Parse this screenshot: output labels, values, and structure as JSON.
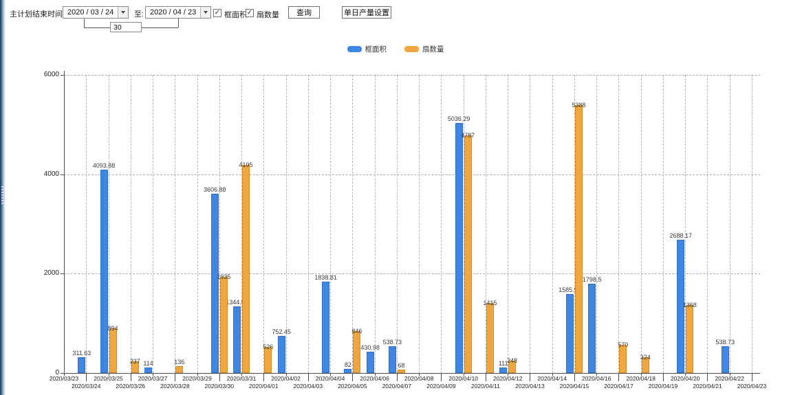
{
  "toolbar": {
    "label": "主计划结束时间:",
    "start_date": "2020 / 03 / 24",
    "to_label": "至:",
    "end_date": "2020 / 04 / 23",
    "days_value": "30",
    "checkbox_frame_area": "框面积",
    "checkbox_fan_count": "扇数量",
    "checkbox_frame_checked": "✓",
    "checkbox_fan_checked": "✓",
    "query_button": "查询",
    "daily_output_button": "单日产量设置"
  },
  "legend": {
    "items": [
      {
        "label": "框面积",
        "color": "#3f87e5"
      },
      {
        "label": "扇数量",
        "color": "#f0a73e"
      }
    ]
  },
  "chart_data": {
    "type": "bar",
    "title": "",
    "xlabel": "",
    "ylabel": "",
    "ylim": [
      0,
      6000
    ],
    "yticks": [
      0,
      2000,
      4000,
      6000
    ],
    "grid": "dashed",
    "legend_position": "top-center",
    "categories": [
      "2020/03/23",
      "2020/03/24",
      "2020/03/25",
      "2020/03/26",
      "2020/03/27",
      "2020/03/28",
      "2020/03/29",
      "2020/03/30",
      "2020/03/31",
      "2020/04/01",
      "2020/04/02",
      "2020/04/03",
      "2020/04/04",
      "2020/04/05",
      "2020/04/06",
      "2020/04/07",
      "2020/04/08",
      "2020/04/09",
      "2020/04/10",
      "2020/04/11",
      "2020/04/12",
      "2020/04/13",
      "2020/04/14",
      "2020/04/15",
      "2020/04/16",
      "2020/04/17",
      "2020/04/18",
      "2020/04/19",
      "2020/04/20",
      "2020/04/21",
      "2020/04/22",
      "2020/04/23"
    ],
    "series": [
      {
        "name": "框面积",
        "color": "#3f87e5",
        "border_color": "#2f6fc6",
        "values": [
          null,
          311.63,
          4093.88,
          null,
          114,
          null,
          null,
          3606.88,
          1344.95,
          null,
          752.45,
          null,
          1838.81,
          82,
          430.98,
          538.73,
          null,
          null,
          5036.29,
          null,
          111,
          null,
          null,
          1585.96,
          1798.5,
          null,
          null,
          null,
          2688.17,
          null,
          538.73,
          null
        ]
      },
      {
        "name": "扇数量",
        "color": "#f0a73e",
        "border_color": "#cf8c28",
        "values": [
          null,
          null,
          894,
          237,
          null,
          136,
          null,
          1935,
          4195,
          526,
          null,
          null,
          null,
          846,
          null,
          68,
          null,
          null,
          4787,
          1415,
          248,
          null,
          null,
          5388,
          null,
          570,
          324,
          null,
          1368,
          null,
          null,
          null
        ]
      }
    ]
  }
}
